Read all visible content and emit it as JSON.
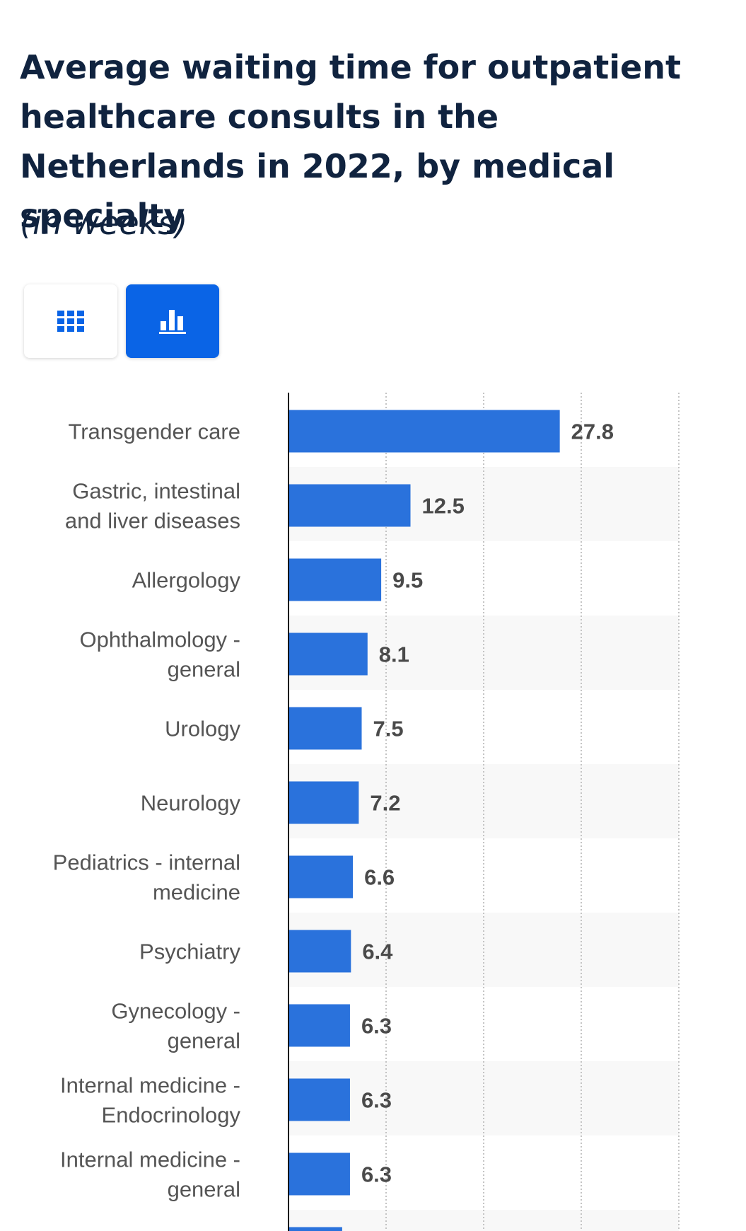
{
  "header": {
    "title": "Average waiting time for outpatient healthcare consults in the Netherlands in 2022, by medical specialty",
    "subtitle": "(in weeks)"
  },
  "view_toggle": {
    "table_icon": "grid-table-icon",
    "chart_icon": "bar-chart-icon",
    "active": "chart"
  },
  "colors": {
    "bar": "#2a72dc",
    "active_button": "#0a64e6",
    "title": "#10233f",
    "stripe": "#f8f8f8",
    "gridline": "#c4c4c4",
    "axis": "#111111"
  },
  "chart_data": {
    "type": "bar",
    "orientation": "horizontal",
    "title": "Average waiting time for outpatient healthcare consults in the Netherlands in 2022, by medical specialty",
    "subtitle": "(in weeks)",
    "xlabel": "",
    "ylabel": "",
    "xlim": [
      0,
      40
    ],
    "grid": true,
    "categories": [
      [
        "Transgender care"
      ],
      [
        "Gastric, intestinal",
        "and liver diseases"
      ],
      [
        "Allergology"
      ],
      [
        "Ophthalmology -",
        "general"
      ],
      [
        "Urology"
      ],
      [
        "Neurology"
      ],
      [
        "Pediatrics - internal",
        "medicine"
      ],
      [
        "Psychiatry"
      ],
      [
        "Gynecology -",
        "general"
      ],
      [
        "Internal medicine -",
        "Endocrinology"
      ],
      [
        "Internal medicine -",
        "general"
      ]
    ],
    "values": [
      27.8,
      12.5,
      9.5,
      8.1,
      7.5,
      7.2,
      6.6,
      6.4,
      6.3,
      6.3,
      6.3
    ],
    "value_labels": [
      "27.8",
      "12.5",
      "9.5",
      "8.1",
      "7.5",
      "7.2",
      "6.6",
      "6.4",
      "6.3",
      "6.3",
      "6.3"
    ]
  }
}
